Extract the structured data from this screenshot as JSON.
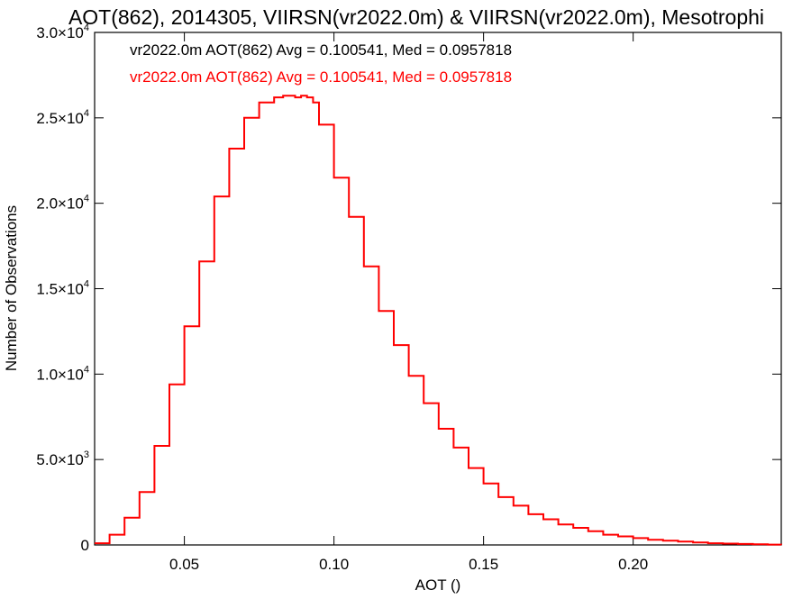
{
  "chart_data": {
    "type": "line",
    "title": "AOT(862), 2014305, VIIRSN(vr2022.0m) & VIIRSN(vr2022.0m), Mesotrophi",
    "xlabel": "AOT ()",
    "ylabel": "Number of Observations",
    "xlim": [
      0.02,
      0.2495
    ],
    "ylim": [
      0,
      30000
    ],
    "x_ticks": [
      0.05,
      0.1,
      0.15,
      0.2
    ],
    "x_tick_labels": [
      "0.05",
      "0.10",
      "0.15",
      "0.20"
    ],
    "y_ticks": [
      0,
      5000,
      10000,
      15000,
      20000,
      25000,
      30000
    ],
    "y_tick_labels": [
      {
        "mantissa": "0",
        "exponent": ""
      },
      {
        "mantissa": "5.0×10",
        "exponent": "3"
      },
      {
        "mantissa": "1.0×10",
        "exponent": "4"
      },
      {
        "mantissa": "1.5×10",
        "exponent": "4"
      },
      {
        "mantissa": "2.0×10",
        "exponent": "4"
      },
      {
        "mantissa": "2.5×10",
        "exponent": "4"
      },
      {
        "mantissa": "3.0×10",
        "exponent": "4"
      }
    ],
    "grid": false,
    "annotations": [
      {
        "text": "vr2022.0m AOT(862) Avg = 0.100541, Med = 0.0957818",
        "color": "#000000"
      },
      {
        "text": "vr2022.0m AOT(862) Avg = 0.100541, Med = 0.0957818",
        "color": "#ff0000"
      }
    ],
    "series": [
      {
        "color": "#ff0000",
        "style": "step",
        "x": [
          0.02,
          0.025,
          0.03,
          0.035,
          0.04,
          0.045,
          0.05,
          0.055,
          0.06,
          0.065,
          0.07,
          0.075,
          0.08,
          0.083,
          0.085,
          0.087,
          0.089,
          0.091,
          0.093,
          0.095,
          0.1,
          0.105,
          0.11,
          0.115,
          0.12,
          0.125,
          0.13,
          0.135,
          0.14,
          0.145,
          0.15,
          0.155,
          0.16,
          0.165,
          0.17,
          0.175,
          0.18,
          0.185,
          0.19,
          0.195,
          0.2,
          0.205,
          0.21,
          0.215,
          0.22,
          0.225,
          0.23,
          0.235,
          0.24,
          0.245,
          0.2495
        ],
        "y": [
          100,
          600,
          1600,
          3100,
          5800,
          9400,
          12800,
          16600,
          20400,
          23200,
          25000,
          25900,
          26200,
          26300,
          26300,
          26200,
          26300,
          26200,
          25900,
          24600,
          21500,
          19200,
          16300,
          13700,
          11700,
          9900,
          8300,
          6800,
          5700,
          4500,
          3600,
          2800,
          2300,
          1800,
          1500,
          1200,
          1000,
          800,
          600,
          500,
          400,
          300,
          250,
          200,
          150,
          100,
          80,
          60,
          40,
          20,
          10
        ]
      }
    ]
  }
}
